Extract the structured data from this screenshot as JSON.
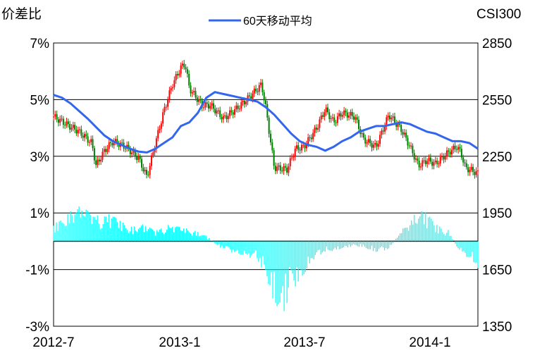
{
  "chart_data": {
    "type": "line",
    "title": "",
    "ylabel_left": "价差比",
    "ylabel_right": "CSI300",
    "legend": {
      "label": "60天移动平均",
      "placement": "top-center"
    },
    "x_tick_labels": [
      "2012-7",
      "2013-1",
      "2013-7",
      "2014-1"
    ],
    "y_left_ticks": [
      "7%",
      "5%",
      "3%",
      "1%",
      "-1%",
      "-3%"
    ],
    "y_right_ticks": [
      "2850",
      "2550",
      "2250",
      "1950",
      "1650",
      "1350"
    ],
    "y_left_range": [
      -3,
      7
    ],
    "y_right_range": [
      1350,
      2850
    ],
    "grid": "horizontal",
    "colors": {
      "moving_average": "#3366ee",
      "spread_bars": "#00ffff",
      "candle_up": "#ff0000",
      "candle_down": "#008000"
    },
    "series": [
      {
        "name": "60天移动平均",
        "axis": "right",
        "x": [
          0,
          0.02,
          0.04,
          0.06,
          0.08,
          0.1,
          0.12,
          0.14,
          0.16,
          0.18,
          0.2,
          0.22,
          0.24,
          0.26,
          0.28,
          0.3,
          0.32,
          0.34,
          0.36,
          0.38,
          0.4,
          0.42,
          0.44,
          0.46,
          0.48,
          0.5,
          0.52,
          0.54,
          0.56,
          0.58,
          0.6,
          0.62,
          0.64,
          0.66,
          0.68,
          0.7,
          0.72,
          0.74,
          0.76,
          0.78,
          0.8,
          0.82,
          0.84,
          0.86,
          0.88,
          0.9,
          0.92,
          0.94,
          0.96,
          0.98,
          1
        ],
        "values": [
          2575,
          2560,
          2530,
          2490,
          2450,
          2405,
          2360,
          2330,
          2310,
          2290,
          2275,
          2270,
          2290,
          2320,
          2350,
          2410,
          2430,
          2480,
          2560,
          2590,
          2580,
          2570,
          2560,
          2550,
          2540,
          2510,
          2470,
          2420,
          2370,
          2330,
          2310,
          2300,
          2280,
          2300,
          2330,
          2350,
          2380,
          2395,
          2410,
          2410,
          2420,
          2430,
          2420,
          2400,
          2380,
          2370,
          2350,
          2330,
          2330,
          2320,
          2290
        ]
      },
      {
        "name": "CSI300",
        "axis": "right",
        "x": [
          0,
          0.03,
          0.06,
          0.09,
          0.1,
          0.12,
          0.14,
          0.17,
          0.2,
          0.22,
          0.24,
          0.26,
          0.28,
          0.3,
          0.31,
          0.32,
          0.35,
          0.37,
          0.4,
          0.43,
          0.46,
          0.49,
          0.5,
          0.52,
          0.55,
          0.57,
          0.59,
          0.62,
          0.64,
          0.66,
          0.68,
          0.71,
          0.73,
          0.76,
          0.79,
          0.82,
          0.84,
          0.86,
          0.88,
          0.9,
          0.93,
          0.95,
          0.96,
          0.97,
          0.98,
          1
        ],
        "values": [
          2460,
          2420,
          2380,
          2320,
          2200,
          2280,
          2330,
          2300,
          2240,
          2140,
          2320,
          2490,
          2630,
          2720,
          2740,
          2610,
          2520,
          2520,
          2450,
          2500,
          2560,
          2630,
          2510,
          2190,
          2180,
          2290,
          2300,
          2400,
          2500,
          2430,
          2480,
          2460,
          2340,
          2300,
          2470,
          2390,
          2300,
          2200,
          2230,
          2210,
          2270,
          2300,
          2270,
          2190,
          2180,
          2160
        ]
      },
      {
        "name": "价差比",
        "axis": "left",
        "type": "bar",
        "x": [
          0,
          0.03,
          0.05,
          0.08,
          0.11,
          0.13,
          0.15,
          0.18,
          0.21,
          0.24,
          0.27,
          0.3,
          0.33,
          0.36,
          0.39,
          0.42,
          0.45,
          0.48,
          0.5,
          0.52,
          0.54,
          0.56,
          0.58,
          0.61,
          0.64,
          0.67,
          0.7,
          0.73,
          0.76,
          0.79,
          0.82,
          0.84,
          0.86,
          0.88,
          0.9,
          0.93,
          0.95,
          0.97,
          1
        ],
        "values": [
          0.6,
          0.9,
          1.3,
          1.1,
          0.9,
          1.0,
          0.8,
          0.5,
          0.6,
          0.4,
          0.6,
          0.5,
          0.4,
          0.2,
          -0.2,
          -0.4,
          -0.5,
          -0.7,
          -1.2,
          -2.2,
          -2.6,
          -1.8,
          -1.4,
          -0.7,
          -0.4,
          -0.3,
          -0.2,
          -0.2,
          -0.4,
          -0.3,
          0.4,
          0.7,
          1.2,
          1.0,
          0.6,
          0.4,
          -0.2,
          -0.5,
          -1.0
        ]
      }
    ]
  }
}
